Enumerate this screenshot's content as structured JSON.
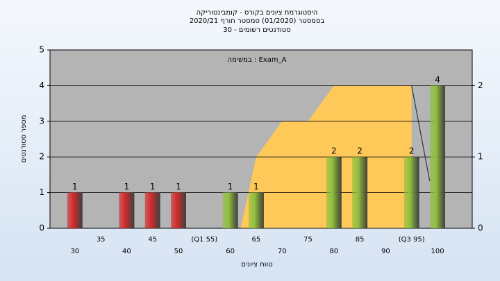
{
  "chart_data": {
    "type": "bar",
    "title": [
      "היסטוגרמת ציונים בקורס - קומבינטוריקה",
      "בסמסטר  (01/2020)  סמסטר חורף 2020/21",
      "סטודנטים רשומים - 30"
    ],
    "annotation": "במשימה : Exam_A",
    "x_label": "טווח ציונים",
    "y_label": "מספר סטודנטים",
    "categories": [
      "30",
      "35",
      "40",
      "45",
      "50",
      "(Q1 55)",
      "60",
      "65",
      "70",
      "75",
      "80",
      "85",
      "90",
      "(Q3 95)",
      "100"
    ],
    "values": [
      1,
      0,
      1,
      1,
      1,
      0,
      1,
      1,
      0,
      0,
      2,
      2,
      0,
      2,
      4
    ],
    "colors": [
      "#d42a2a",
      "#d42a2a",
      "#d42a2a",
      "#d42a2a",
      "#d42a2a",
      "#d42a2a",
      "#8fbf3f",
      "#8fbf3f",
      "#8fbf3f",
      "#8fbf3f",
      "#8fbf3f",
      "#8fbf3f",
      "#8fbf3f",
      "#8fbf3f",
      "#8fbf3f"
    ],
    "xlim": [
      25.2,
      106.7
    ],
    "ylim": [
      0,
      5
    ],
    "yticks": [
      0,
      1,
      2,
      3,
      4,
      5
    ],
    "y2lim": [
      0,
      2.5
    ],
    "y2ticks": [
      0,
      1,
      2
    ],
    "area": {
      "color": "#ffc95a",
      "axis": "y2",
      "x": [
        62,
        65,
        70,
        75,
        80,
        95
      ],
      "values": [
        0,
        1,
        1.5,
        1.5,
        2,
        2
      ]
    },
    "line": {
      "color": "#333333",
      "axis": "y2",
      "x": [
        95,
        98.5
      ],
      "values": [
        2,
        0.66
      ]
    },
    "grid": true
  }
}
